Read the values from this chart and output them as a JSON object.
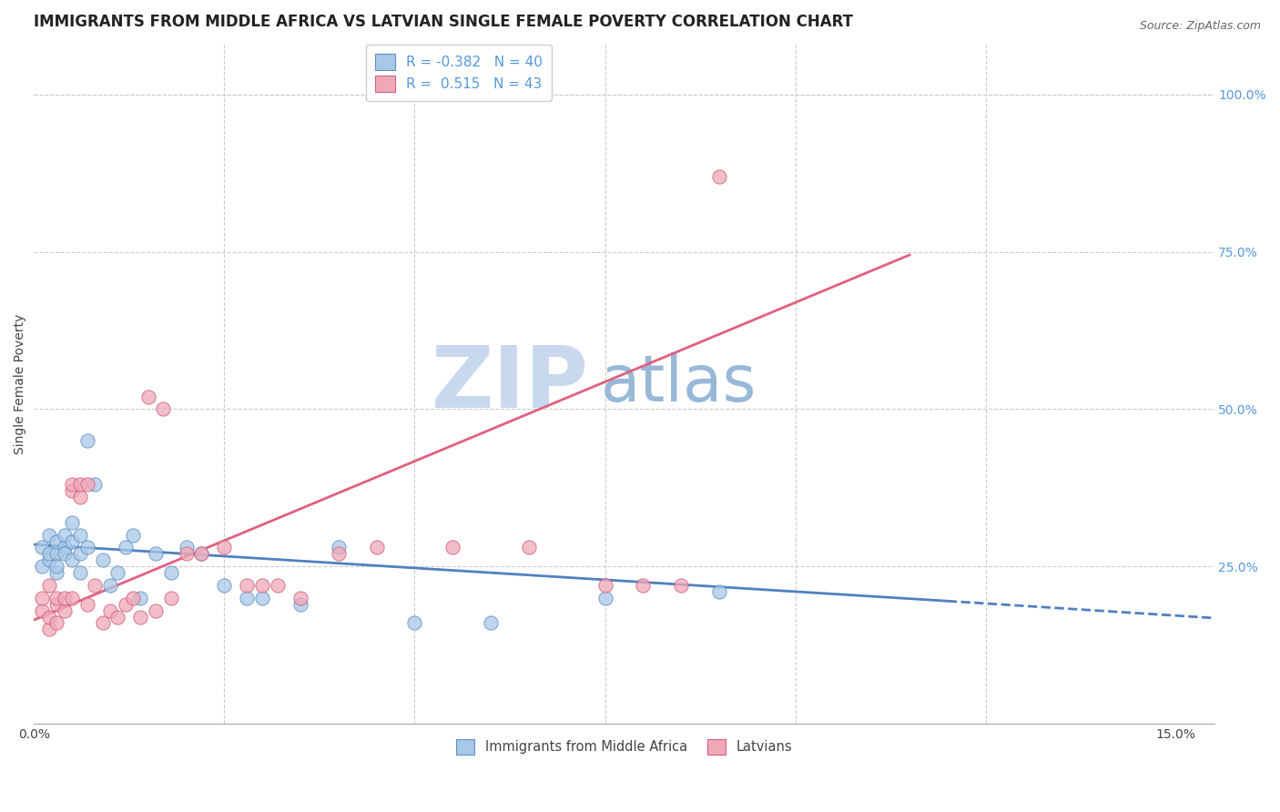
{
  "title": "IMMIGRANTS FROM MIDDLE AFRICA VS LATVIAN SINGLE FEMALE POVERTY CORRELATION CHART",
  "source": "Source: ZipAtlas.com",
  "ylabel": "Single Female Poverty",
  "right_yticks": [
    "100.0%",
    "75.0%",
    "50.0%",
    "25.0%"
  ],
  "right_ytick_vals": [
    1.0,
    0.75,
    0.5,
    0.25
  ],
  "legend_entries": [
    {
      "label": "R = -0.382   N = 40",
      "color": "#aac8e8"
    },
    {
      "label": "R =  0.515   N = 43",
      "color": "#f0b0c0"
    }
  ],
  "watermark_top": "ZIP",
  "watermark_bot": "atlas",
  "blue_scatter": {
    "x": [
      0.001,
      0.001,
      0.002,
      0.002,
      0.002,
      0.003,
      0.003,
      0.003,
      0.003,
      0.004,
      0.004,
      0.004,
      0.005,
      0.005,
      0.005,
      0.006,
      0.006,
      0.006,
      0.007,
      0.007,
      0.008,
      0.009,
      0.01,
      0.011,
      0.012,
      0.013,
      0.014,
      0.016,
      0.018,
      0.02,
      0.022,
      0.025,
      0.028,
      0.03,
      0.035,
      0.04,
      0.05,
      0.06,
      0.075,
      0.09
    ],
    "y": [
      0.25,
      0.28,
      0.26,
      0.27,
      0.3,
      0.24,
      0.27,
      0.29,
      0.25,
      0.28,
      0.3,
      0.27,
      0.26,
      0.29,
      0.32,
      0.27,
      0.3,
      0.24,
      0.28,
      0.45,
      0.38,
      0.26,
      0.22,
      0.24,
      0.28,
      0.3,
      0.2,
      0.27,
      0.24,
      0.28,
      0.27,
      0.22,
      0.2,
      0.2,
      0.19,
      0.28,
      0.16,
      0.16,
      0.2,
      0.21
    ],
    "color": "#a8c8e8",
    "edgecolor": "#6090c0",
    "trend_x0": 0.0,
    "trend_x1": 0.12,
    "trend_y0": 0.285,
    "trend_y1": 0.195,
    "trend_dash_x0": 0.12,
    "trend_dash_x1": 0.155,
    "trend_dash_y0": 0.195,
    "trend_dash_y1": 0.168,
    "trend_color": "#5080c0"
  },
  "pink_scatter": {
    "x": [
      0.001,
      0.001,
      0.002,
      0.002,
      0.002,
      0.003,
      0.003,
      0.003,
      0.004,
      0.004,
      0.005,
      0.005,
      0.005,
      0.006,
      0.006,
      0.007,
      0.007,
      0.008,
      0.009,
      0.01,
      0.011,
      0.012,
      0.013,
      0.014,
      0.015,
      0.016,
      0.017,
      0.018,
      0.02,
      0.022,
      0.025,
      0.028,
      0.03,
      0.032,
      0.035,
      0.04,
      0.045,
      0.055,
      0.065,
      0.075,
      0.08,
      0.085,
      0.09
    ],
    "y": [
      0.18,
      0.2,
      0.15,
      0.17,
      0.22,
      0.19,
      0.16,
      0.2,
      0.18,
      0.2,
      0.37,
      0.38,
      0.2,
      0.36,
      0.38,
      0.38,
      0.19,
      0.22,
      0.16,
      0.18,
      0.17,
      0.19,
      0.2,
      0.17,
      0.52,
      0.18,
      0.5,
      0.2,
      0.27,
      0.27,
      0.28,
      0.22,
      0.22,
      0.22,
      0.2,
      0.27,
      0.28,
      0.28,
      0.28,
      0.22,
      0.22,
      0.22,
      0.87
    ],
    "color": "#f0a8b8",
    "edgecolor": "#d06080",
    "trend_x0": 0.0,
    "trend_x1": 0.115,
    "trend_y0": 0.165,
    "trend_y1": 0.745,
    "trend_color": "#e06080"
  },
  "xlim": [
    0.0,
    0.155
  ],
  "ylim": [
    0.0,
    1.08
  ],
  "background_color": "#ffffff",
  "grid_color": "#cccccc",
  "title_fontsize": 12,
  "axis_label_fontsize": 10,
  "tick_fontsize": 10,
  "right_tick_color": "#5599dd",
  "watermark_color_zip": "#c8d8ef",
  "watermark_color_atlas": "#98b8d8",
  "watermark_fontsize": 68
}
